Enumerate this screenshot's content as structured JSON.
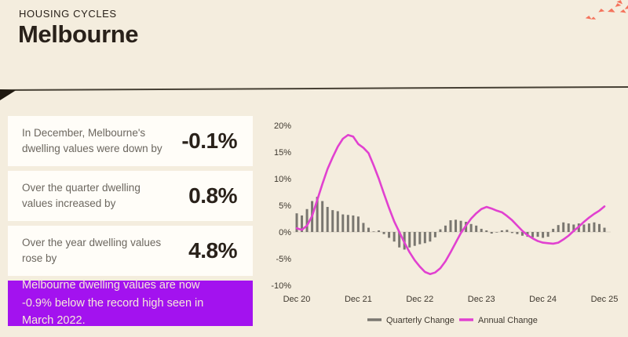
{
  "header": {
    "kicker": "HOUSING CYCLES",
    "title": "Melbourne"
  },
  "theme": {
    "background": "#f4edde",
    "card_background": "#fffdf8",
    "accent_purple": "#a312ef",
    "confetti_red": "#f4735c",
    "bar_gray": "#7a7770",
    "line_magenta": "#e141d0"
  },
  "stats": [
    {
      "label": "In December, Melbourne's dwelling values were down by",
      "value": "-0.1%"
    },
    {
      "label": "Over the quarter dwelling values increased by",
      "value": "0.8%"
    },
    {
      "label": "Over the year dwelling values rose by",
      "value": "4.8%"
    }
  ],
  "banner": {
    "text": "Melbourne dwelling values are now -0.9% below the record high seen in March 2022."
  },
  "chart_data": {
    "type": "bar+line",
    "x_start": "Dec 20",
    "x_end": "Dec 25",
    "x_frequency": "monthly",
    "x_tick_labels": [
      "Dec 20",
      "Dec 21",
      "Dec 22",
      "Dec 23",
      "Dec 24",
      "Dec 25"
    ],
    "y_tick_labels": [
      "20%",
      "15%",
      "10%",
      "5%",
      "0%",
      "-5%",
      "-10%"
    ],
    "ylim": [
      -10,
      20
    ],
    "grid": false,
    "legend_position": "bottom",
    "series": [
      {
        "name": "Quarterly Change",
        "type": "bar",
        "color": "#7a7770",
        "values": [
          3.5,
          3.1,
          4.3,
          5.8,
          6.6,
          5.8,
          4.7,
          4.1,
          3.9,
          3.3,
          3.2,
          3.1,
          2.9,
          1.7,
          0.8,
          0.1,
          0.3,
          -0.4,
          -1.1,
          -1.8,
          -2.9,
          -3.3,
          -2.9,
          -2.6,
          -2.3,
          -2.1,
          -1.8,
          -1.0,
          0.5,
          1.2,
          2.2,
          2.3,
          2.1,
          1.9,
          1.5,
          1.2,
          0.6,
          0.3,
          -0.3,
          -0.1,
          0.3,
          0.4,
          -0.2,
          -0.4,
          -0.7,
          -0.9,
          -1.0,
          -0.9,
          -1.1,
          -0.9,
          0.6,
          1.3,
          1.8,
          1.6,
          1.4,
          1.6,
          1.4,
          1.6,
          1.8,
          1.5,
          0.8
        ]
      },
      {
        "name": "Annual Change",
        "type": "line",
        "color": "#e141d0",
        "values": [
          0.7,
          0.4,
          1.2,
          3.0,
          6.0,
          9.0,
          11.8,
          14.0,
          16.0,
          17.5,
          18.2,
          17.9,
          16.5,
          15.8,
          14.8,
          12.5,
          10.0,
          7.2,
          4.5,
          2.0,
          0.0,
          -2.0,
          -3.8,
          -5.3,
          -6.5,
          -7.5,
          -7.9,
          -7.6,
          -6.8,
          -5.5,
          -3.8,
          -2.0,
          -0.2,
          1.2,
          2.5,
          3.5,
          4.3,
          4.7,
          4.4,
          4.0,
          3.7,
          3.0,
          2.2,
          1.2,
          0.2,
          -0.6,
          -1.2,
          -1.7,
          -2.0,
          -2.1,
          -2.2,
          -2.0,
          -1.4,
          -0.7,
          0.2,
          1.0,
          1.9,
          2.7,
          3.4,
          4.0,
          4.8
        ]
      }
    ]
  }
}
